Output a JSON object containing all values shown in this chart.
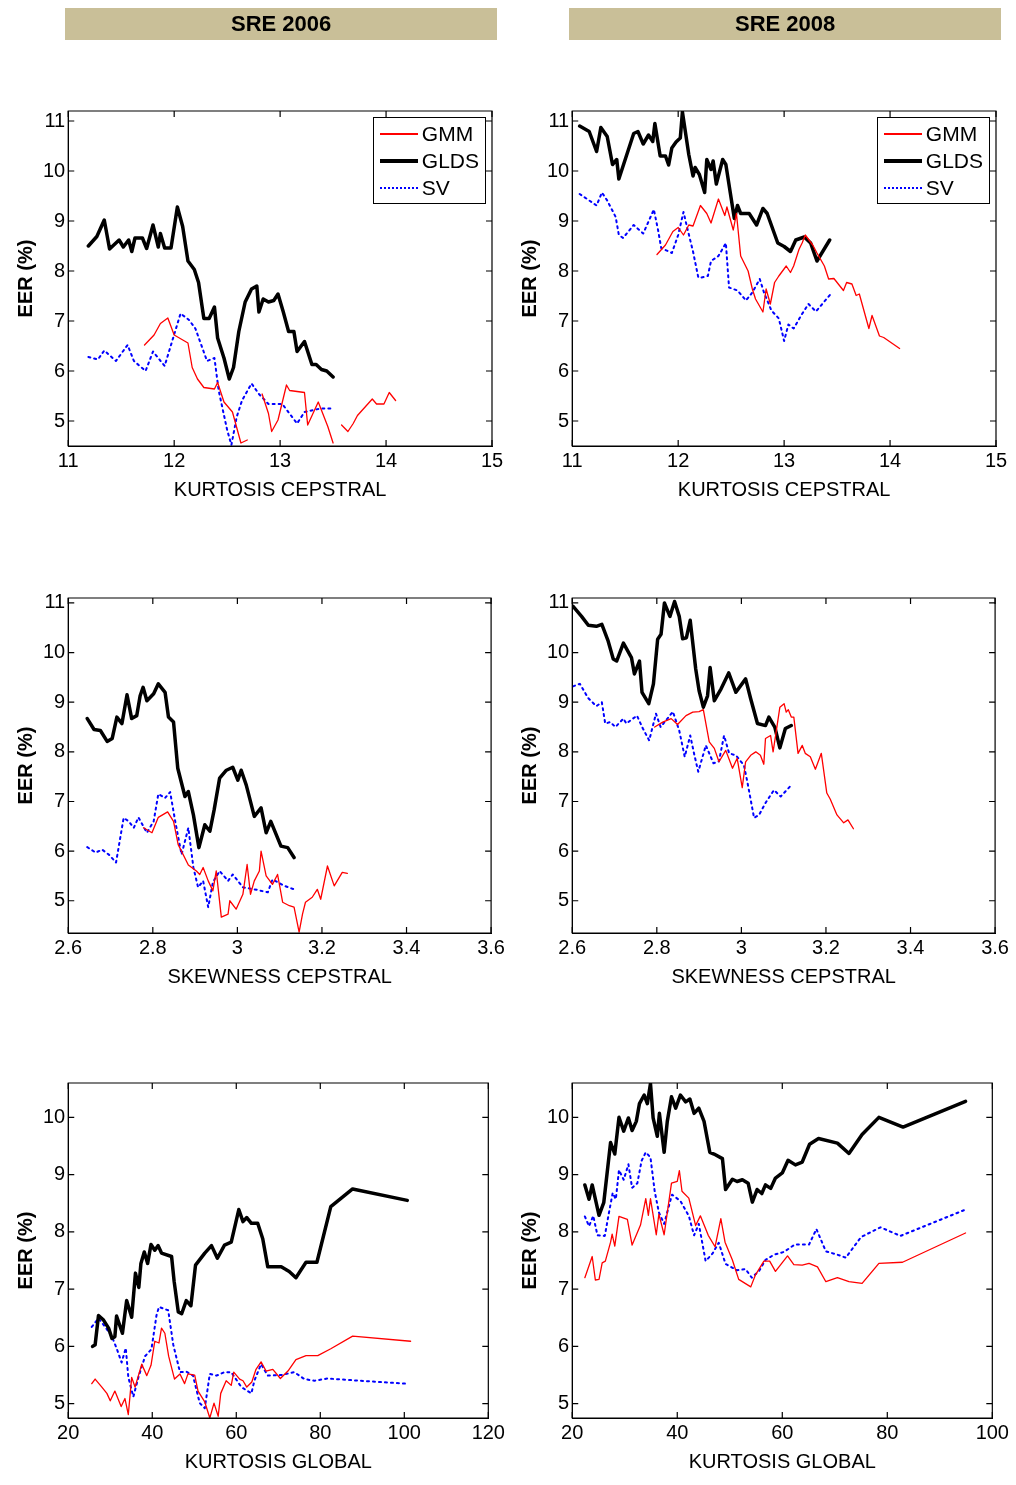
{
  "chart_data": [
    {
      "type": "line",
      "title": "SRE 2006",
      "xlabel": "KURTOSIS CEPSTRAL",
      "ylabel": "EER (%)",
      "xlim": [
        11,
        15
      ],
      "xticks": [
        11,
        12,
        13,
        14,
        15
      ],
      "ylim": [
        4.5,
        11.2
      ],
      "yticks": [
        5,
        6,
        7,
        8,
        9,
        10,
        11
      ],
      "legend": "top right",
      "series": [
        {
          "name": "GMM",
          "color": "#ff0000",
          "line_style": "solid",
          "x": [
            11.72,
            11.81,
            11.87,
            11.94,
            12.0,
            12.13,
            12.17,
            12.22,
            12.28,
            12.38,
            12.41,
            12.47,
            12.55,
            12.63,
            12.69,
            12.76,
            12.83,
            12.89,
            12.92,
            12.98,
            13.06,
            13.09,
            13.23,
            13.26,
            13.36,
            13.45,
            13.5,
            13.55,
            13.58,
            13.64,
            13.69,
            13.73,
            13.87,
            13.91,
            13.98,
            14.03,
            14.09
          ],
          "values": [
            6.52,
            6.72,
            6.95,
            7.06,
            6.72,
            6.56,
            6.07,
            5.84,
            5.67,
            5.64,
            5.77,
            5.38,
            5.18,
            4.56,
            4.62,
            null,
            5.54,
            5.15,
            4.79,
            5.02,
            5.72,
            5.61,
            5.57,
            4.92,
            5.38,
            4.89,
            4.56,
            null,
            4.92,
            4.79,
            4.95,
            5.11,
            5.44,
            5.34,
            5.34,
            5.57,
            5.41
          ]
        },
        {
          "name": "GLDS",
          "color": "#000000",
          "line_style": "solid",
          "x": [
            11.19,
            11.27,
            11.34,
            11.39,
            11.48,
            11.52,
            11.57,
            11.6,
            11.63,
            11.7,
            11.74,
            11.8,
            11.85,
            11.87,
            11.91,
            11.97,
            12.03,
            12.08,
            12.13,
            12.19,
            12.23,
            12.28,
            12.33,
            12.38,
            12.41,
            12.47,
            12.52,
            12.56,
            12.61,
            12.67,
            12.73,
            12.78,
            12.8,
            12.84,
            12.89,
            12.94,
            12.98,
            13.03,
            13.08,
            13.13,
            13.16,
            13.23,
            13.3,
            13.34,
            13.39,
            13.44,
            13.5
          ],
          "values": [
            8.5,
            8.69,
            9.02,
            8.44,
            8.62,
            8.48,
            8.62,
            8.39,
            8.66,
            8.66,
            8.45,
            8.92,
            8.48,
            8.75,
            8.46,
            8.46,
            9.28,
            8.89,
            8.2,
            8.03,
            7.77,
            7.05,
            7.05,
            7.28,
            6.66,
            6.26,
            5.84,
            6.07,
            6.79,
            7.38,
            7.64,
            7.7,
            7.18,
            7.44,
            7.38,
            7.41,
            7.54,
            7.18,
            6.79,
            6.79,
            6.39,
            6.59,
            6.13,
            6.13,
            6.03,
            6.0,
            5.88
          ]
        },
        {
          "name": "SV",
          "color": "#0000ff",
          "line_style": "dotted",
          "x": [
            11.19,
            11.28,
            11.34,
            11.45,
            11.56,
            11.62,
            11.73,
            11.8,
            11.91,
            11.97,
            12.06,
            12.14,
            12.2,
            12.31,
            12.38,
            12.42,
            12.5,
            12.54,
            12.59,
            12.64,
            12.73,
            12.8,
            12.89,
            13.02,
            13.16,
            13.23,
            13.38,
            13.48
          ],
          "values": [
            6.28,
            6.23,
            6.41,
            6.2,
            6.52,
            6.2,
            6.0,
            6.39,
            6.1,
            6.52,
            7.15,
            7.02,
            6.85,
            6.2,
            6.26,
            5.61,
            4.82,
            4.52,
            5.08,
            5.41,
            5.75,
            5.54,
            5.34,
            5.34,
            4.95,
            5.18,
            5.25,
            5.25
          ]
        }
      ]
    },
    {
      "type": "line",
      "title": "SRE 2008",
      "xlabel": "KURTOSIS CEPSTRAL",
      "ylabel": "EER (%)",
      "xlim": [
        11,
        15
      ],
      "xticks": [
        11,
        12,
        13,
        14,
        15
      ],
      "ylim": [
        4.5,
        11.2
      ],
      "yticks": [
        5,
        6,
        7,
        8,
        9,
        10,
        11
      ],
      "legend": "top right",
      "series": [
        {
          "name": "GMM",
          "color": "#ff0000",
          "line_style": "solid",
          "x": [
            11.8,
            11.88,
            11.95,
            12.0,
            12.05,
            12.1,
            12.14,
            12.21,
            12.27,
            12.31,
            12.38,
            12.44,
            12.46,
            12.52,
            12.55,
            12.59,
            12.66,
            12.7,
            12.73,
            12.8,
            12.83,
            12.87,
            12.91,
            12.95,
            13.02,
            13.06,
            13.09,
            13.14,
            13.17,
            13.2,
            13.27,
            13.31,
            13.38,
            13.42,
            13.47,
            13.56,
            13.59,
            13.64,
            13.68,
            13.71,
            13.8,
            13.83,
            13.9,
            13.94,
            14.09
          ],
          "values": [
            8.33,
            8.52,
            8.79,
            8.87,
            8.72,
            8.92,
            8.9,
            9.31,
            9.15,
            8.96,
            9.44,
            9.11,
            9.28,
            8.82,
            9.15,
            8.3,
            8.0,
            7.64,
            7.44,
            7.18,
            7.64,
            7.34,
            7.77,
            7.9,
            8.1,
            7.97,
            8.1,
            8.43,
            8.56,
            8.72,
            8.52,
            8.36,
            8.1,
            7.84,
            7.85,
            7.61,
            7.77,
            7.74,
            7.51,
            7.54,
            6.85,
            7.11,
            6.7,
            6.67,
            6.45
          ]
        },
        {
          "name": "GLDS",
          "color": "#000000",
          "line_style": "solid",
          "x": [
            11.07,
            11.16,
            11.23,
            11.27,
            11.33,
            11.38,
            11.42,
            11.44,
            11.58,
            11.62,
            11.67,
            11.72,
            11.76,
            11.78,
            11.83,
            11.88,
            11.91,
            11.94,
            11.98,
            12.02,
            12.04,
            12.1,
            12.14,
            12.16,
            12.2,
            12.25,
            12.27,
            12.31,
            12.33,
            12.36,
            12.42,
            12.45,
            12.53,
            12.56,
            12.59,
            12.67,
            12.74,
            12.8,
            12.84,
            12.94,
            13.0,
            13.06,
            13.11,
            13.19,
            13.25,
            13.31,
            13.43
          ],
          "values": [
            10.9,
            10.79,
            10.39,
            10.87,
            10.69,
            10.13,
            10.23,
            9.84,
            10.75,
            10.79,
            10.54,
            10.72,
            10.59,
            10.95,
            10.3,
            10.3,
            10.12,
            10.46,
            10.58,
            10.66,
            11.18,
            10.33,
            9.9,
            10.07,
            9.93,
            9.57,
            10.23,
            10.03,
            10.2,
            9.74,
            10.23,
            10.13,
            9.05,
            9.31,
            9.15,
            9.15,
            8.92,
            9.25,
            9.15,
            8.56,
            8.49,
            8.39,
            8.62,
            8.68,
            8.56,
            8.2,
            8.62
          ]
        },
        {
          "name": "SV",
          "color": "#0000ff",
          "line_style": "dotted",
          "x": [
            11.07,
            11.14,
            11.23,
            11.28,
            11.33,
            11.41,
            11.44,
            11.48,
            11.58,
            11.67,
            11.77,
            11.81,
            11.84,
            11.94,
            12.0,
            12.05,
            12.09,
            12.14,
            12.19,
            12.22,
            12.28,
            12.31,
            12.38,
            12.45,
            12.48,
            12.56,
            12.64,
            12.7,
            12.77,
            12.81,
            12.88,
            12.95,
            13.0,
            13.04,
            13.09,
            13.16,
            13.23,
            13.3,
            13.44
          ],
          "values": [
            9.54,
            9.44,
            9.31,
            9.57,
            9.41,
            9.08,
            8.72,
            8.66,
            8.92,
            8.75,
            9.23,
            8.82,
            8.46,
            8.36,
            8.72,
            9.18,
            8.82,
            8.39,
            7.87,
            7.87,
            7.9,
            8.2,
            8.3,
            8.56,
            7.67,
            7.61,
            7.41,
            7.57,
            7.84,
            7.57,
            7.21,
            7.05,
            6.6,
            6.93,
            6.85,
            7.11,
            7.34,
            7.19,
            7.54
          ]
        }
      ]
    },
    {
      "type": "line",
      "xlabel": "SKEWNESS CEPSTRAL",
      "ylabel": "EER (%)",
      "xlim": [
        2.6,
        3.6
      ],
      "xticks": [
        2.6,
        2.8,
        3,
        3.2,
        3.4,
        3.6
      ],
      "ylim": [
        4.35,
        11.1
      ],
      "yticks": [
        5,
        6,
        7,
        8,
        9,
        10,
        11
      ],
      "series": [
        {
          "color": "#ff0000",
          "line_style": "solid",
          "x": [
            2.778,
            2.798,
            2.813,
            2.835,
            2.849,
            2.86,
            2.884,
            2.903,
            2.911,
            2.919,
            2.931,
            2.942,
            2.95,
            2.962,
            2.978,
            2.982,
            2.997,
            3.013,
            3.023,
            3.031,
            3.04,
            3.052,
            3.056,
            3.068,
            3.083,
            3.095,
            3.107,
            3.123,
            3.134,
            3.146,
            3.154,
            3.161,
            3.177,
            3.189,
            3.197,
            3.213,
            3.229,
            3.248,
            3.26
          ],
          "values": [
            6.47,
            6.37,
            6.68,
            6.79,
            6.6,
            6.13,
            5.72,
            5.6,
            5.53,
            5.67,
            5.4,
            5.2,
            5.6,
            4.67,
            4.73,
            5.0,
            4.83,
            5.13,
            5.73,
            5.13,
            5.4,
            5.6,
            6.0,
            5.5,
            5.33,
            5.53,
            4.97,
            4.9,
            4.87,
            4.37,
            4.73,
            4.97,
            5.07,
            5.23,
            5.03,
            5.7,
            5.3,
            5.57,
            5.55
          ]
        },
        {
          "color": "#000000",
          "line_style": "solid",
          "x": [
            2.645,
            2.661,
            2.676,
            2.692,
            2.704,
            2.715,
            2.727,
            2.739,
            2.75,
            2.762,
            2.77,
            2.777,
            2.786,
            2.802,
            2.813,
            2.829,
            2.837,
            2.849,
            2.859,
            2.876,
            2.884,
            2.896,
            2.909,
            2.923,
            2.935,
            2.945,
            2.958,
            2.974,
            2.989,
            3.001,
            3.009,
            3.021,
            3.04,
            3.056,
            3.068,
            3.079,
            3.103,
            3.119,
            3.134
          ],
          "values": [
            8.67,
            8.45,
            8.43,
            8.21,
            8.27,
            8.7,
            8.57,
            9.15,
            8.67,
            8.73,
            9.13,
            9.3,
            9.03,
            9.17,
            9.37,
            9.2,
            8.7,
            8.6,
            7.67,
            7.1,
            7.2,
            6.73,
            6.07,
            6.53,
            6.4,
            6.83,
            7.47,
            7.63,
            7.69,
            7.43,
            7.63,
            7.33,
            6.7,
            6.87,
            6.37,
            6.6,
            6.1,
            6.07,
            5.87
          ]
        },
        {
          "color": "#0000ff",
          "line_style": "dotted",
          "x": [
            2.645,
            2.665,
            2.68,
            2.696,
            2.713,
            2.731,
            2.743,
            2.755,
            2.766,
            2.786,
            2.802,
            2.813,
            2.829,
            2.841,
            2.853,
            2.868,
            2.884,
            2.896,
            2.907,
            2.919,
            2.931,
            2.942,
            2.958,
            2.978,
            2.989,
            3.013,
            3.04,
            3.072,
            3.083,
            3.111,
            3.134
          ],
          "values": [
            6.08,
            5.97,
            6.03,
            5.93,
            5.77,
            6.67,
            6.6,
            6.47,
            6.68,
            6.37,
            6.6,
            7.15,
            7.07,
            7.19,
            6.6,
            5.93,
            6.47,
            5.67,
            5.27,
            5.4,
            4.87,
            5.37,
            5.6,
            5.4,
            5.53,
            5.27,
            5.23,
            5.17,
            5.43,
            5.3,
            5.23
          ]
        }
      ]
    },
    {
      "type": "line",
      "xlabel": "SKEWNESS CEPSTRAL",
      "ylabel": "EER (%)",
      "xlim": [
        2.6,
        3.6
      ],
      "xticks": [
        2.6,
        2.8,
        3,
        3.2,
        3.4,
        3.6
      ],
      "ylim": [
        4.35,
        11.1
      ],
      "yticks": [
        5,
        6,
        7,
        8,
        9,
        10,
        11
      ],
      "series": [
        {
          "color": "#ff0000",
          "line_style": "solid",
          "x": [
            2.795,
            2.814,
            2.834,
            2.849,
            2.869,
            2.885,
            2.9,
            2.91,
            2.924,
            2.936,
            2.947,
            2.963,
            2.979,
            2.99,
            3.002,
            3.01,
            3.022,
            3.034,
            3.045,
            3.053,
            3.057,
            3.069,
            3.075,
            3.081,
            3.091,
            3.101,
            3.106,
            3.111,
            3.118,
            3.124,
            3.134,
            3.144,
            3.151,
            3.163,
            3.175,
            3.189,
            3.202,
            3.21,
            3.226,
            3.242,
            3.252,
            3.265
          ],
          "values": [
            8.5,
            8.6,
            8.67,
            8.55,
            8.73,
            8.8,
            8.81,
            8.85,
            8.2,
            8.07,
            7.8,
            8.03,
            7.67,
            7.87,
            7.28,
            7.8,
            7.93,
            8.0,
            7.93,
            7.75,
            8.27,
            8.33,
            8.0,
            8.33,
            8.9,
            8.97,
            8.8,
            8.85,
            8.7,
            8.7,
            7.97,
            8.13,
            7.97,
            7.9,
            7.65,
            7.97,
            7.17,
            7.05,
            6.73,
            6.57,
            6.63,
            6.45
          ]
        },
        {
          "color": "#000000",
          "line_style": "solid",
          "x": [
            2.602,
            2.622,
            2.638,
            2.657,
            2.67,
            2.685,
            2.697,
            2.705,
            2.721,
            2.74,
            2.747,
            2.759,
            2.765,
            2.781,
            2.792,
            2.802,
            2.81,
            2.818,
            2.831,
            2.842,
            2.853,
            2.861,
            2.87,
            2.879,
            2.892,
            2.9,
            2.91,
            2.92,
            2.926,
            2.936,
            2.952,
            2.97,
            2.987,
            3.01,
            3.022,
            3.038,
            3.057,
            3.065,
            3.079,
            3.091,
            3.104,
            3.118
          ],
          "values": [
            10.93,
            10.73,
            10.55,
            10.53,
            10.57,
            10.23,
            9.87,
            9.83,
            10.19,
            9.9,
            9.57,
            9.83,
            9.2,
            8.97,
            9.37,
            10.27,
            10.37,
            11.0,
            10.73,
            11.03,
            10.73,
            10.28,
            10.3,
            10.65,
            9.67,
            9.23,
            8.9,
            9.13,
            9.7,
            9.03,
            9.27,
            9.59,
            9.2,
            9.47,
            9.07,
            8.57,
            8.53,
            8.7,
            8.5,
            8.08,
            8.47,
            8.53
          ]
        },
        {
          "color": "#0000ff",
          "line_style": "dotted",
          "x": [
            2.602,
            2.618,
            2.638,
            2.657,
            2.67,
            2.678,
            2.69,
            2.702,
            2.721,
            2.728,
            2.753,
            2.767,
            2.782,
            2.798,
            2.809,
            2.838,
            2.853,
            2.866,
            2.879,
            2.889,
            2.898,
            2.916,
            2.934,
            2.947,
            2.959,
            2.971,
            2.987,
            3.006,
            3.014,
            3.03,
            3.042,
            3.057,
            3.077,
            3.093,
            3.118
          ],
          "values": [
            9.32,
            9.37,
            9.08,
            8.92,
            9.0,
            8.57,
            8.6,
            8.5,
            8.67,
            8.57,
            8.73,
            8.47,
            8.23,
            8.77,
            8.5,
            8.81,
            8.43,
            7.9,
            8.33,
            7.93,
            7.6,
            8.13,
            7.77,
            7.81,
            8.33,
            7.97,
            7.93,
            7.73,
            7.4,
            6.67,
            6.73,
            6.97,
            7.23,
            7.1,
            7.33
          ]
        }
      ]
    },
    {
      "type": "line",
      "xlabel": "KURTOSIS GLOBAL",
      "ylabel": "EER (%)",
      "xlim": [
        20,
        120
      ],
      "xticks": [
        20,
        40,
        60,
        80,
        100,
        120
      ],
      "ylim": [
        4.75,
        10.6
      ],
      "yticks": [
        5,
        6,
        7,
        8,
        9,
        10
      ],
      "series": [
        {
          "color": "#ff0000",
          "line_style": "solid",
          "x": [
            25.6,
            26.4,
            28.0,
            29.2,
            30.0,
            31.1,
            32.6,
            33.5,
            34.3,
            35.1,
            35.9,
            36.7,
            37.5,
            38.7,
            39.7,
            40.6,
            41.6,
            42.2,
            43.0,
            43.9,
            45.3,
            46.6,
            47.7,
            48.5,
            50.1,
            50.9,
            52.5,
            53.7,
            54.7,
            55.7,
            56.3,
            57.6,
            58.8,
            59.4,
            60.8,
            61.6,
            62.5,
            63.7,
            64.7,
            65.9,
            67.1,
            68.7,
            70.5,
            72.3,
            74.2,
            76.6,
            79.4,
            82.5,
            87.7,
            101.5
          ],
          "values": [
            5.35,
            5.43,
            5.29,
            5.18,
            5.05,
            5.22,
            4.95,
            5.09,
            4.81,
            5.46,
            5.29,
            5.49,
            5.69,
            5.49,
            5.67,
            6.09,
            6.06,
            6.32,
            6.23,
            5.83,
            5.43,
            5.52,
            5.35,
            5.52,
            5.5,
            5.22,
            5.03,
            4.75,
            5.01,
            4.78,
            5.18,
            5.4,
            5.32,
            5.55,
            5.43,
            5.4,
            5.29,
            5.38,
            5.6,
            5.73,
            5.57,
            5.6,
            5.44,
            5.57,
            5.77,
            5.84,
            5.84,
            5.96,
            6.18,
            6.09
          ]
        },
        {
          "color": "#000000",
          "line_style": "solid",
          "x": [
            25.8,
            26.4,
            27.2,
            28.4,
            29.6,
            30.4,
            31.1,
            31.5,
            32.9,
            33.9,
            35.1,
            36.0,
            36.8,
            37.3,
            38.1,
            38.9,
            39.7,
            40.6,
            41.4,
            42.2,
            44.6,
            45.2,
            46.2,
            47.0,
            48.1,
            49.2,
            50.3,
            52.5,
            54.1,
            55.5,
            57.2,
            58.8,
            60.6,
            61.6,
            62.5,
            63.6,
            65.1,
            66.3,
            67.5,
            70.7,
            72.6,
            74.2,
            76.6,
            79.2,
            82.5,
            87.7,
            100.7
          ],
          "values": [
            6.0,
            6.03,
            6.54,
            6.46,
            6.32,
            6.14,
            6.17,
            6.53,
            6.23,
            6.8,
            6.51,
            7.28,
            7.03,
            7.45,
            7.65,
            7.45,
            7.78,
            7.68,
            7.76,
            7.63,
            7.57,
            7.14,
            6.6,
            6.57,
            6.8,
            6.71,
            7.42,
            7.63,
            7.76,
            7.54,
            7.77,
            7.82,
            8.39,
            8.18,
            8.25,
            8.15,
            8.15,
            7.88,
            7.39,
            7.39,
            7.31,
            7.2,
            7.47,
            7.47,
            8.44,
            8.75,
            8.55
          ]
        },
        {
          "color": "#0000ff",
          "line_style": "dotted",
          "x": [
            25.6,
            27.2,
            28.8,
            30.4,
            31.5,
            32.7,
            33.7,
            34.3,
            35.5,
            36.7,
            38.3,
            39.8,
            41.0,
            41.6,
            43.8,
            45.0,
            46.6,
            48.1,
            49.7,
            51.3,
            52.5,
            53.7,
            55.3,
            57.2,
            58.8,
            61.2,
            63.6,
            64.3,
            65.9,
            67.5,
            70.7,
            73.8,
            76.2,
            78.6,
            81.7,
            89.6,
            100.3
          ],
          "values": [
            6.34,
            6.49,
            6.34,
            6.17,
            5.97,
            5.72,
            5.97,
            5.46,
            5.12,
            5.46,
            5.83,
            5.95,
            6.54,
            6.69,
            6.63,
            6.03,
            5.55,
            5.56,
            5.49,
            5.01,
            4.92,
            5.52,
            5.49,
            5.55,
            5.55,
            5.29,
            5.18,
            5.4,
            5.69,
            5.49,
            5.5,
            5.55,
            5.43,
            5.4,
            5.44,
            5.4,
            5.35
          ]
        }
      ]
    },
    {
      "type": "line",
      "xlabel": "KURTOSIS GLOBAL",
      "ylabel": "EER (%)",
      "xlim": [
        20,
        100
      ],
      "xticks": [
        20,
        40,
        60,
        80,
        100
      ],
      "ylim": [
        4.75,
        10.6
      ],
      "yticks": [
        5,
        6,
        7,
        8,
        9,
        10
      ],
      "series": [
        {
          "color": "#ff0000",
          "line_style": "solid",
          "x": [
            22.4,
            23.8,
            24.4,
            25.1,
            25.7,
            26.3,
            27.3,
            27.6,
            28.1,
            28.9,
            30.5,
            31.4,
            33.0,
            34.0,
            34.5,
            34.9,
            36.0,
            36.5,
            37.5,
            38.9,
            40.0,
            40.4,
            40.9,
            42.2,
            43.5,
            44.4,
            45.9,
            47.2,
            48.3,
            49.1,
            50.5,
            51.7,
            54.0,
            54.9,
            56.5,
            57.6,
            58.7,
            61.0,
            62.2,
            63.8,
            65.1,
            66.7,
            68.3,
            70.5,
            72.7,
            75.2,
            78.4,
            82.9,
            94.9
          ],
          "values": [
            7.2,
            7.57,
            7.16,
            7.17,
            7.46,
            7.49,
            7.82,
            7.96,
            7.75,
            8.27,
            8.22,
            7.77,
            8.12,
            8.58,
            8.29,
            8.58,
            7.95,
            8.31,
            7.95,
            8.85,
            8.88,
            9.07,
            8.71,
            8.59,
            8.11,
            8.28,
            7.94,
            7.74,
            8.23,
            7.82,
            7.51,
            7.17,
            7.04,
            7.25,
            7.49,
            7.49,
            7.31,
            7.58,
            7.43,
            7.42,
            7.45,
            7.39,
            7.13,
            7.2,
            7.13,
            7.1,
            7.45,
            7.47,
            7.98
          ]
        },
        {
          "color": "#000000",
          "line_style": "solid",
          "x": [
            22.4,
            23.2,
            23.8,
            25.1,
            26.0,
            27.3,
            28.1,
            28.9,
            29.8,
            30.7,
            31.4,
            32.2,
            32.8,
            33.7,
            34.3,
            34.9,
            35.4,
            36.2,
            36.6,
            37.5,
            38.1,
            38.9,
            39.7,
            40.6,
            41.6,
            42.4,
            43.2,
            44.1,
            45.1,
            46.2,
            47.0,
            48.6,
            49.2,
            50.5,
            51.4,
            52.4,
            53.5,
            54.3,
            55.2,
            56.1,
            56.8,
            57.8,
            58.7,
            60.0,
            61.1,
            62.5,
            63.8,
            65.2,
            66.9,
            70.5,
            72.7,
            75.2,
            78.4,
            83.0,
            94.9
          ],
          "values": [
            8.82,
            8.57,
            8.82,
            8.29,
            8.51,
            9.56,
            9.36,
            10.0,
            9.76,
            9.99,
            9.77,
            9.93,
            10.24,
            10.39,
            10.24,
            10.59,
            9.99,
            9.67,
            10.07,
            9.39,
            9.93,
            10.36,
            10.16,
            10.39,
            10.27,
            10.32,
            10.07,
            10.16,
            9.93,
            9.39,
            9.36,
            9.28,
            8.74,
            8.92,
            8.88,
            8.91,
            8.85,
            8.52,
            8.74,
            8.67,
            8.82,
            8.76,
            8.94,
            9.03,
            9.25,
            9.17,
            9.22,
            9.53,
            9.63,
            9.55,
            9.37,
            9.7,
            10.0,
            9.83,
            10.28
          ]
        },
        {
          "color": "#0000ff",
          "line_style": "dotted",
          "x": [
            22.4,
            23.2,
            24.0,
            24.8,
            26.2,
            27.0,
            27.7,
            28.3,
            28.9,
            29.8,
            30.7,
            31.4,
            32.4,
            33.2,
            34.0,
            34.9,
            35.7,
            36.5,
            37.5,
            38.4,
            39.0,
            40.6,
            42.2,
            43.2,
            44.1,
            45.4,
            46.7,
            47.9,
            49.2,
            51.4,
            53.0,
            54.2,
            55.6,
            56.8,
            58.4,
            60.3,
            62.4,
            65.1,
            66.5,
            68.3,
            70.2,
            72.1,
            75.0,
            78.7,
            82.5,
            94.9
          ],
          "values": [
            8.27,
            8.1,
            8.28,
            7.94,
            7.93,
            8.34,
            8.68,
            8.57,
            9.08,
            8.91,
            9.18,
            8.77,
            8.85,
            9.24,
            9.39,
            9.3,
            8.71,
            8.34,
            8.14,
            8.45,
            8.65,
            8.54,
            8.28,
            7.94,
            8.14,
            7.49,
            7.62,
            7.81,
            7.44,
            7.33,
            7.35,
            7.2,
            7.32,
            7.51,
            7.6,
            7.65,
            7.78,
            7.78,
            8.05,
            7.66,
            7.61,
            7.55,
            7.91,
            8.08,
            7.93,
            8.39
          ]
        }
      ]
    }
  ]
}
